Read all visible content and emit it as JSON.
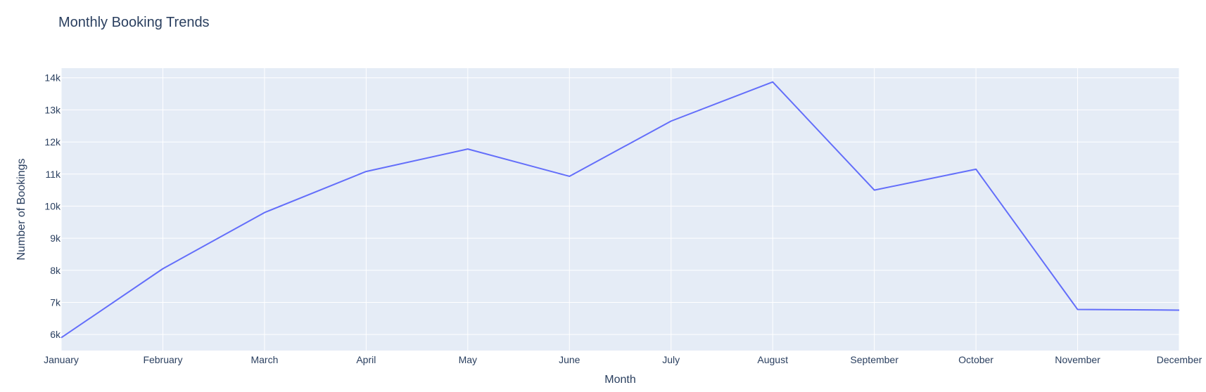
{
  "chart_data": {
    "type": "line",
    "title": "Monthly Booking Trends",
    "xlabel": "Month",
    "ylabel": "Number of Bookings",
    "categories": [
      "January",
      "February",
      "March",
      "April",
      "May",
      "June",
      "July",
      "August",
      "September",
      "October",
      "November",
      "December"
    ],
    "series": [
      {
        "values": [
          5900,
          8050,
          9800,
          11080,
          11780,
          10930,
          12650,
          13870,
          10500,
          11150,
          6780,
          6760
        ]
      }
    ],
    "ylim": [
      5500,
      14300
    ],
    "yticks": [
      6000,
      7000,
      8000,
      9000,
      10000,
      11000,
      12000,
      13000,
      14000
    ],
    "ytick_labels": [
      "6k",
      "7k",
      "8k",
      "9k",
      "10k",
      "11k",
      "12k",
      "13k",
      "14k"
    ],
    "grid": true,
    "colors": {
      "line": "#636efa",
      "plot_bg": "#e5ecf6",
      "grid": "#ffffff",
      "text": "#2a3f5f"
    }
  }
}
